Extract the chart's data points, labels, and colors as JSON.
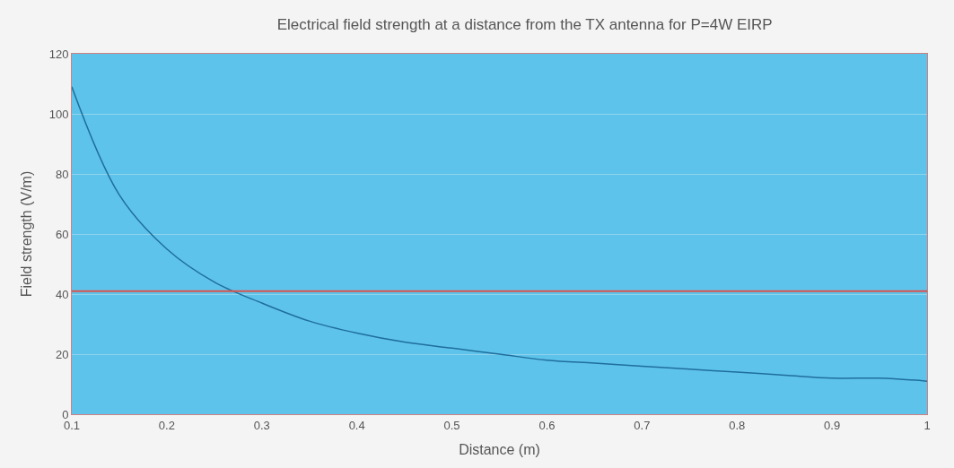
{
  "chart_data": {
    "type": "line",
    "title": "Electrical field strength at a distance from the TX antenna for P=4W EIRP",
    "xlabel": "Distance (m)",
    "ylabel": "Field strength (V/m)",
    "x": [
      0.1,
      0.15,
      0.2,
      0.25,
      0.3,
      0.35,
      0.4,
      0.45,
      0.5,
      0.55,
      0.6,
      0.65,
      0.7,
      0.75,
      0.8,
      0.85,
      0.9,
      0.95,
      1
    ],
    "series": [
      {
        "color": "#1f6e9c",
        "values": [
          109,
          73,
          55,
          44,
          37,
          31,
          27,
          24,
          22,
          20,
          18,
          17,
          16,
          15,
          14,
          13,
          12,
          12,
          11
        ]
      }
    ],
    "xlim": [
      0.1,
      1
    ],
    "xticks": [
      0.1,
      0.2,
      0.3,
      0.4,
      0.5,
      0.6,
      0.7,
      0.8,
      0.9,
      1
    ],
    "ylim": [
      0,
      120
    ],
    "yticks": [
      0,
      20,
      40,
      60,
      80,
      100,
      120
    ],
    "ref_lines": [
      {
        "axis": "y",
        "value": 41,
        "color": "#d9534f"
      }
    ],
    "grid": "y",
    "legend": false,
    "marker": "none",
    "line_style": "solid"
  }
}
